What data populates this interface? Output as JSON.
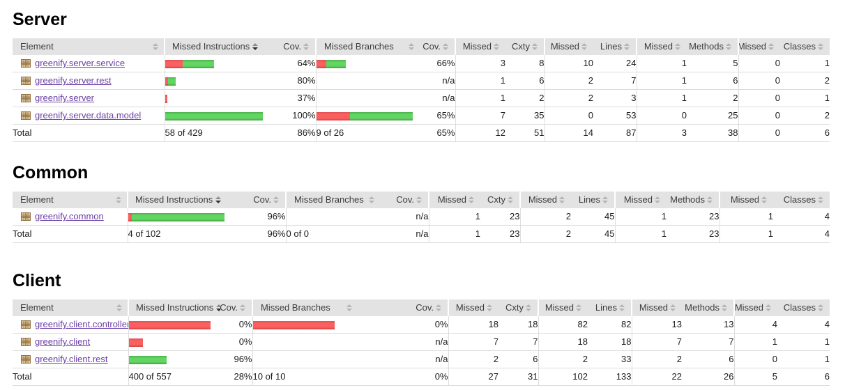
{
  "report": {
    "columns": [
      "Element",
      "Missed Instructions",
      "Cov.",
      "Missed Branches",
      "Cov.",
      "Missed",
      "Cxty",
      "Missed",
      "Lines",
      "Missed",
      "Methods",
      "Missed",
      "Classes"
    ],
    "colors": {
      "bar_red": "#fb6060",
      "bar_green": "#63d563",
      "header_bg": "#e3e3e3",
      "link_purple": "#6a3fa5"
    },
    "sections": [
      {
        "id": "server",
        "title": "Server",
        "sorted_column": "Missed Instructions",
        "rows": [
          {
            "label": "greenify.server.service",
            "instr": {
              "bar": [
                25,
                45
              ],
              "cov": "64%"
            },
            "branch": {
              "bar": [
                14,
                28
              ],
              "cov": "66%"
            },
            "counts": [
              "3",
              "8",
              "10",
              "24",
              "1",
              "5",
              "0",
              "1"
            ]
          },
          {
            "label": "greenify.server.rest",
            "instr": {
              "bar": [
                4,
                11
              ],
              "cov": "80%"
            },
            "branch": {
              "bar": [
                0,
                0
              ],
              "cov": "n/a"
            },
            "counts": [
              "1",
              "6",
              "2",
              "7",
              "1",
              "6",
              "0",
              "2"
            ]
          },
          {
            "label": "greenify.server",
            "instr": {
              "bar": [
                3,
                0
              ],
              "cov": "37%"
            },
            "branch": {
              "bar": [
                0,
                0
              ],
              "cov": "n/a"
            },
            "counts": [
              "1",
              "2",
              "2",
              "3",
              "1",
              "2",
              "0",
              "1"
            ]
          },
          {
            "label": "greenify.server.data.model",
            "instr": {
              "bar": [
                0,
                140
              ],
              "cov": "100%"
            },
            "branch": {
              "bar": [
                48,
                90
              ],
              "cov": "65%"
            },
            "counts": [
              "7",
              "35",
              "0",
              "53",
              "0",
              "25",
              "0",
              "2"
            ]
          }
        ],
        "total": {
          "label": "Total",
          "instr": {
            "text": "58 of 429",
            "cov": "86%"
          },
          "branch": {
            "text": "9 of 26",
            "cov": "65%"
          },
          "counts": [
            "12",
            "51",
            "14",
            "87",
            "3",
            "38",
            "0",
            "6"
          ]
        }
      },
      {
        "id": "common",
        "title": "Common",
        "sorted_column": "Missed Instructions",
        "rows": [
          {
            "label": "greenify.common",
            "instr": {
              "bar": [
                5,
                133
              ],
              "cov": "96%"
            },
            "branch": {
              "bar": [
                0,
                0
              ],
              "cov": "n/a"
            },
            "counts": [
              "1",
              "23",
              "2",
              "45",
              "1",
              "23",
              "1",
              "4"
            ]
          }
        ],
        "total": {
          "label": "Total",
          "instr": {
            "text": "4 of 102",
            "cov": "96%"
          },
          "branch": {
            "text": "0 of 0",
            "cov": "n/a"
          },
          "counts": [
            "1",
            "23",
            "2",
            "45",
            "1",
            "23",
            "1",
            "4"
          ]
        }
      },
      {
        "id": "client",
        "title": "Client",
        "sorted_column": "Missed Instructions",
        "rows": [
          {
            "label": "greenify.client.controller",
            "instr": {
              "bar": [
                117,
                0
              ],
              "cov": "0%"
            },
            "branch": {
              "bar": [
                117,
                0
              ],
              "cov": "0%"
            },
            "counts": [
              "18",
              "18",
              "82",
              "82",
              "13",
              "13",
              "4",
              "4"
            ]
          },
          {
            "label": "greenify.client",
            "instr": {
              "bar": [
                20,
                0
              ],
              "cov": "0%"
            },
            "branch": {
              "bar": [
                0,
                0
              ],
              "cov": "n/a"
            },
            "counts": [
              "7",
              "7",
              "18",
              "18",
              "7",
              "7",
              "1",
              "1"
            ]
          },
          {
            "label": "greenify.client.rest",
            "instr": {
              "bar": [
                0,
                54
              ],
              "cov": "96%"
            },
            "branch": {
              "bar": [
                0,
                0
              ],
              "cov": "n/a"
            },
            "counts": [
              "2",
              "6",
              "2",
              "33",
              "2",
              "6",
              "0",
              "1"
            ]
          }
        ],
        "total": {
          "label": "Total",
          "instr": {
            "text": "400 of 557",
            "cov": "28%"
          },
          "branch": {
            "text": "10 of 10",
            "cov": "0%"
          },
          "counts": [
            "27",
            "31",
            "102",
            "133",
            "22",
            "26",
            "5",
            "6"
          ]
        }
      }
    ]
  }
}
